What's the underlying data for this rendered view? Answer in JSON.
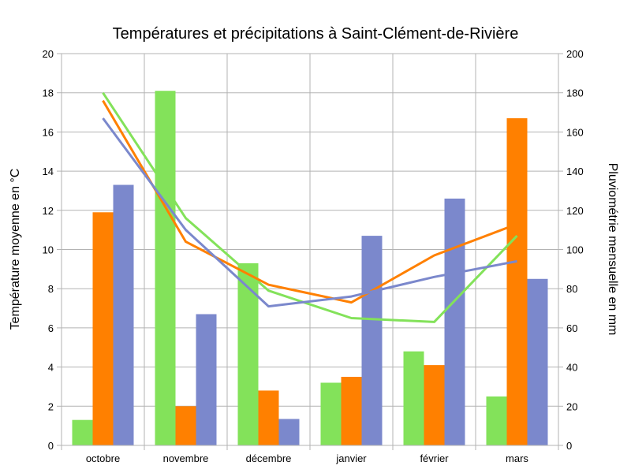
{
  "chart_data": {
    "type": "bar",
    "title": "Températures et précipitations à Saint-Clément-de-Rivière",
    "categories": [
      "octobre",
      "novembre",
      "décembre",
      "janvier",
      "février",
      "mars"
    ],
    "ylabel": "Température moyenne en °C",
    "y2label": "Pluviométrie mensuelle en mm",
    "ylim": [
      0,
      20
    ],
    "y2lim": [
      0,
      200
    ],
    "yticks": [
      "0",
      "2",
      "4",
      "6",
      "8",
      "10",
      "12",
      "14",
      "16",
      "18",
      "20"
    ],
    "y2ticks": [
      "0",
      "20",
      "40",
      "60",
      "80",
      "100",
      "120",
      "140",
      "160",
      "180",
      "200"
    ],
    "grid": true,
    "legend": "none",
    "series": [
      {
        "type": "bar",
        "axis": "y2",
        "color": "#83e25a",
        "values": [
          13,
          181,
          93,
          32,
          48,
          25
        ]
      },
      {
        "type": "bar",
        "axis": "y2",
        "color": "#ff8000",
        "values": [
          119,
          20,
          28,
          35,
          41,
          167
        ]
      },
      {
        "type": "bar",
        "axis": "y2",
        "color": "#7b88cc",
        "values": [
          133,
          67,
          13.5,
          107,
          126,
          85
        ]
      },
      {
        "type": "line",
        "axis": "y",
        "color": "#83e25a",
        "values": [
          18.0,
          11.6,
          7.9,
          6.5,
          6.3,
          10.7
        ]
      },
      {
        "type": "line",
        "axis": "y",
        "color": "#ff8000",
        "values": [
          17.6,
          10.4,
          8.2,
          7.3,
          9.7,
          11.3
        ]
      },
      {
        "type": "line",
        "axis": "y",
        "color": "#7b88cc",
        "values": [
          16.7,
          11.0,
          7.1,
          7.6,
          8.6,
          9.4
        ]
      }
    ]
  }
}
